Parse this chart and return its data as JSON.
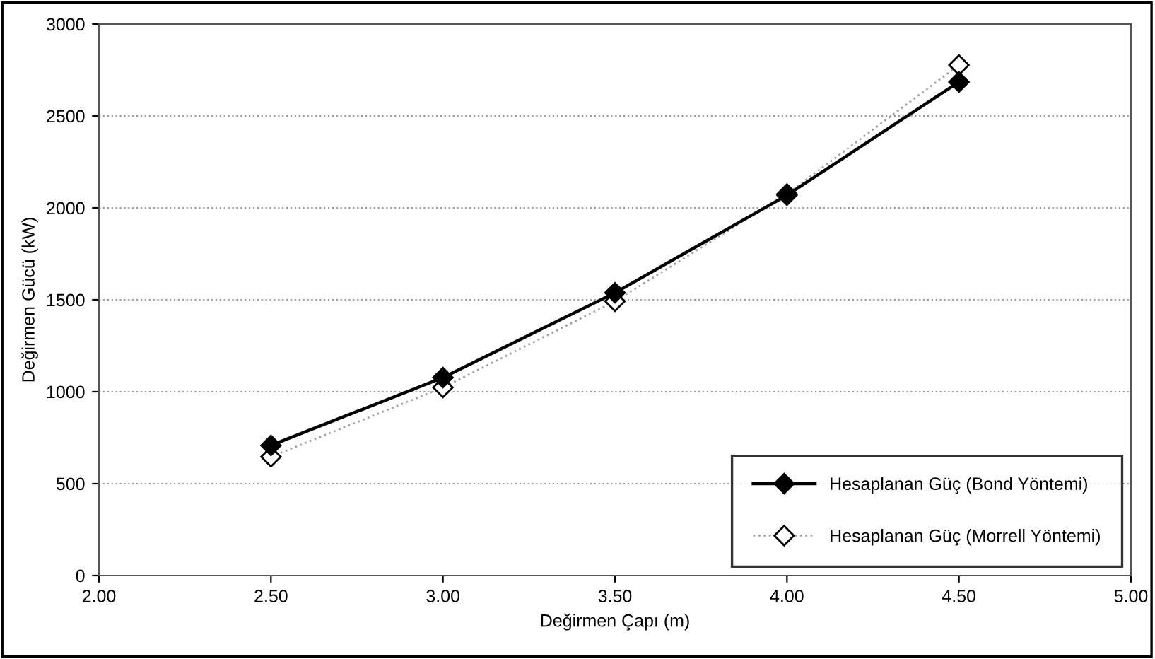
{
  "chart_data": {
    "type": "line",
    "xlabel": "Değirmen Çapı (m)",
    "ylabel": "Değirmen Gücü (kW)",
    "x": [
      2.5,
      3.0,
      3.5,
      4.0,
      4.5
    ],
    "series": [
      {
        "name": "Hesaplanan Güç (Bond Yöntemi)",
        "color": "#000000",
        "values": [
          708,
          1077,
          1538,
          2069,
          2685
        ],
        "marker": "diamond",
        "line_style": "solid"
      },
      {
        "name": "Hesaplanan Güç (Morrell Yöntemi)",
        "color": "#a0a0a0",
        "values": [
          646,
          1023,
          1492,
          2075,
          2777
        ],
        "marker": "diamond",
        "line_style": "dotted"
      }
    ],
    "xlim": [
      2.0,
      5.0
    ],
    "xticks": [
      {
        "value": 2.0,
        "label": "2.00"
      },
      {
        "value": 2.5,
        "label": "2.50"
      },
      {
        "value": 3.0,
        "label": "3.00"
      },
      {
        "value": 3.5,
        "label": "3.50"
      },
      {
        "value": 4.0,
        "label": "4.00"
      },
      {
        "value": 4.5,
        "label": "4.50"
      },
      {
        "value": 5.0,
        "label": "5.00"
      }
    ],
    "ylim": [
      0,
      3000
    ],
    "yticks": [
      0,
      500,
      1000,
      1500,
      2000,
      2500,
      3000
    ],
    "grid": "y",
    "legend": "bottom right"
  }
}
